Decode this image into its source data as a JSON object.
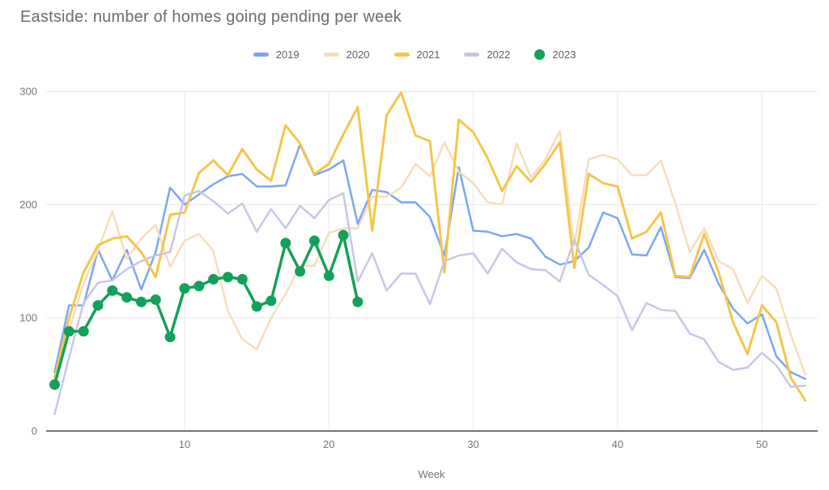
{
  "chart_data": {
    "type": "line",
    "title": "Eastside: number of homes going pending per week",
    "xlabel": "Week",
    "ylabel": "",
    "x_ticks": [
      10,
      20,
      30,
      40,
      50
    ],
    "y_ticks": [
      0,
      100,
      200,
      300
    ],
    "xlim": [
      1,
      53
    ],
    "ylim": [
      0,
      300
    ],
    "grid": true,
    "legend_position": "top",
    "axis_text_color": "#757575",
    "gridline_color": "#e4e4e4",
    "axis_line_color": "#747474",
    "x": [
      1,
      2,
      3,
      4,
      5,
      6,
      7,
      8,
      9,
      10,
      11,
      12,
      13,
      14,
      15,
      16,
      17,
      18,
      19,
      20,
      21,
      22,
      23,
      24,
      25,
      26,
      27,
      28,
      29,
      30,
      31,
      32,
      33,
      34,
      35,
      36,
      37,
      38,
      39,
      40,
      41,
      42,
      43,
      44,
      45,
      46,
      47,
      48,
      49,
      50,
      51,
      52,
      53
    ],
    "series": [
      {
        "name": "2019",
        "color": "#7da6ef",
        "style": "line",
        "values": [
          52,
          111,
          111,
          160,
          133,
          160,
          125,
          158,
          215,
          200,
          209,
          218,
          225,
          227,
          216,
          216,
          217,
          253,
          226,
          231,
          239,
          183,
          213,
          211,
          202,
          202,
          189,
          155,
          233,
          177,
          176,
          172,
          174,
          170,
          154,
          147,
          150,
          162,
          193,
          188,
          156,
          155,
          180,
          136,
          135,
          160,
          130,
          108,
          95,
          103,
          66,
          52,
          46
        ]
      },
      {
        "name": "2020",
        "color": "#f7ddb9",
        "style": "line",
        "values": [
          48,
          90,
          130,
          160,
          194,
          152,
          170,
          182,
          145,
          168,
          174,
          159,
          106,
          81,
          72,
          100,
          121,
          146,
          146,
          175,
          179,
          179,
          207,
          207,
          215,
          236,
          225,
          255,
          229,
          219,
          202,
          200,
          254,
          224,
          240,
          265,
          164,
          240,
          244,
          240,
          226,
          226,
          239,
          201,
          158,
          179,
          150,
          143,
          113,
          137,
          126,
          85,
          50
        ]
      },
      {
        "name": "2021",
        "color": "#f3c64b",
        "style": "line",
        "values": [
          47,
          100,
          140,
          164,
          170,
          172,
          158,
          136,
          191,
          193,
          228,
          239,
          226,
          249,
          231,
          221,
          270,
          254,
          227,
          236,
          262,
          286,
          177,
          279,
          299,
          261,
          256,
          140,
          275,
          264,
          241,
          212,
          234,
          220,
          236,
          255,
          144,
          227,
          219,
          216,
          170,
          176,
          193,
          137,
          136,
          174,
          140,
          96,
          68,
          111,
          96,
          47,
          27
        ]
      },
      {
        "name": "2022",
        "color": "#c9c5e6",
        "style": "line",
        "values": [
          15,
          65,
          113,
          131,
          133,
          143,
          150,
          155,
          158,
          208,
          212,
          203,
          192,
          201,
          176,
          196,
          179,
          199,
          188,
          204,
          210,
          132,
          157,
          124,
          139,
          139,
          112,
          150,
          155,
          157,
          139,
          161,
          149,
          143,
          142,
          132,
          169,
          138,
          129,
          119,
          89,
          113,
          107,
          106,
          86,
          81,
          61,
          54,
          56,
          69,
          58,
          39,
          40
        ]
      },
      {
        "name": "2023",
        "color": "#13a05a",
        "style": "line+markers",
        "values": [
          41,
          88,
          88,
          111,
          124,
          118,
          114,
          116,
          83,
          126,
          128,
          134,
          136,
          134,
          110,
          115,
          166,
          141,
          168,
          137,
          173,
          114
        ]
      }
    ]
  }
}
